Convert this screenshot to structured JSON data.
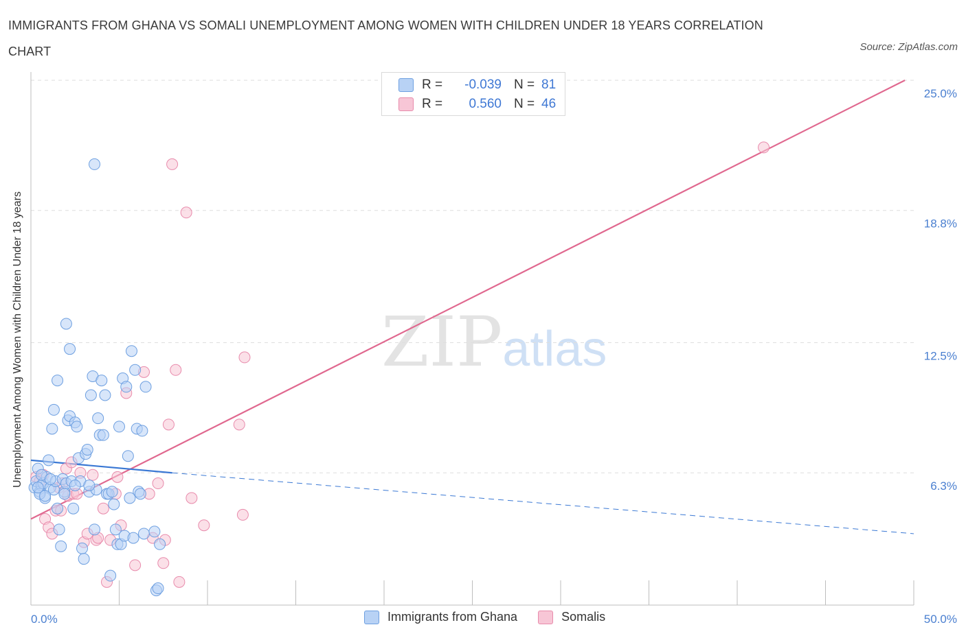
{
  "title": "IMMIGRANTS FROM GHANA VS SOMALI UNEMPLOYMENT AMONG WOMEN WITH CHILDREN UNDER 18 YEARS CORRELATION CHART",
  "source": "Source: ZipAtlas.com",
  "watermark": {
    "zip": "ZIP",
    "atlas": "atlas"
  },
  "legend": {
    "r_label": "R =",
    "n_label": "N =",
    "ghana": {
      "r": "-0.039",
      "n": "81"
    },
    "somali": {
      "r": "0.560",
      "n": "46"
    }
  },
  "colors": {
    "ghana_fill": "#b8d2f5",
    "ghana_stroke": "#6d9fe0",
    "ghana_line": "#3a78d4",
    "somali_fill": "#f7c6d6",
    "somali_stroke": "#e88aab",
    "somali_line": "#e0688f"
  },
  "chart_data": {
    "type": "scatter",
    "title": "IMMIGRANTS FROM GHANA VS SOMALI UNEMPLOYMENT AMONG WOMEN WITH CHILDREN UNDER 18 YEARS CORRELATION CHART",
    "xlabel": "",
    "ylabel": "Unemployment Among Women with Children Under 18 years",
    "xlim": [
      0,
      50
    ],
    "ylim": [
      0,
      25
    ],
    "x_tick_labels": [
      "0.0%",
      "50.0%"
    ],
    "y_ticks": [
      6.3,
      12.5,
      18.8,
      25.0
    ],
    "y_tick_labels": [
      "6.3%",
      "12.5%",
      "18.8%",
      "25.0%"
    ],
    "grid": true,
    "legend_position": "top-center",
    "series": [
      {
        "name": "Immigrants from Ghana",
        "r": -0.039,
        "n": 81,
        "trend": {
          "x0": 0,
          "y0": 6.9,
          "x1": 8,
          "y1": 6.3,
          "dashed_to_x": 50,
          "dashed_to_y": 3.4
        },
        "points": [
          [
            0.2,
            5.6
          ],
          [
            0.3,
            5.9
          ],
          [
            0.4,
            6.5
          ],
          [
            0.5,
            5.4
          ],
          [
            0.6,
            5.7
          ],
          [
            0.7,
            5.8
          ],
          [
            0.8,
            5.1
          ],
          [
            0.9,
            6.1
          ],
          [
            1.0,
            6.9
          ],
          [
            1.1,
            5.6
          ],
          [
            1.2,
            8.4
          ],
          [
            1.3,
            5.5
          ],
          [
            1.4,
            5.9
          ],
          [
            1.5,
            4.6
          ],
          [
            1.6,
            3.6
          ],
          [
            1.7,
            2.8
          ],
          [
            1.8,
            6.0
          ],
          [
            1.9,
            5.4
          ],
          [
            2.0,
            5.8
          ],
          [
            2.1,
            8.8
          ],
          [
            2.2,
            9.0
          ],
          [
            2.3,
            5.9
          ],
          [
            2.4,
            4.6
          ],
          [
            2.5,
            8.7
          ],
          [
            2.6,
            8.5
          ],
          [
            2.7,
            7.0
          ],
          [
            2.8,
            5.9
          ],
          [
            2.9,
            2.7
          ],
          [
            3.0,
            2.2
          ],
          [
            3.1,
            7.2
          ],
          [
            3.2,
            7.4
          ],
          [
            3.3,
            5.4
          ],
          [
            3.4,
            10.0
          ],
          [
            3.5,
            10.9
          ],
          [
            3.6,
            3.6
          ],
          [
            3.7,
            5.5
          ],
          [
            3.8,
            8.9
          ],
          [
            3.9,
            8.1
          ],
          [
            4.0,
            10.7
          ],
          [
            4.1,
            8.1
          ],
          [
            4.2,
            10.0
          ],
          [
            4.3,
            5.3
          ],
          [
            4.4,
            5.3
          ],
          [
            4.5,
            1.4
          ],
          [
            4.6,
            5.4
          ],
          [
            4.7,
            4.8
          ],
          [
            4.8,
            3.6
          ],
          [
            4.9,
            2.9
          ],
          [
            5.0,
            8.5
          ],
          [
            5.1,
            2.9
          ],
          [
            5.2,
            10.8
          ],
          [
            5.3,
            3.3
          ],
          [
            5.4,
            10.4
          ],
          [
            5.5,
            7.1
          ],
          [
            5.6,
            5.1
          ],
          [
            5.7,
            12.1
          ],
          [
            5.8,
            3.2
          ],
          [
            5.9,
            11.2
          ],
          [
            6.0,
            8.4
          ],
          [
            6.1,
            5.4
          ],
          [
            6.2,
            5.3
          ],
          [
            6.3,
            8.3
          ],
          [
            6.4,
            3.4
          ],
          [
            6.5,
            10.4
          ],
          [
            7.0,
            3.5
          ],
          [
            7.1,
            0.7
          ],
          [
            7.2,
            0.8
          ],
          [
            7.3,
            2.9
          ],
          [
            3.6,
            21.0
          ],
          [
            2.0,
            13.4
          ],
          [
            2.2,
            12.2
          ],
          [
            0.5,
            5.3
          ],
          [
            0.6,
            6.2
          ],
          [
            1.3,
            9.3
          ],
          [
            1.5,
            10.7
          ],
          [
            2.5,
            5.7
          ],
          [
            1.1,
            6.0
          ],
          [
            0.4,
            5.6
          ],
          [
            0.8,
            5.2
          ],
          [
            1.9,
            5.3
          ],
          [
            3.3,
            5.7
          ]
        ]
      },
      {
        "name": "Somalis",
        "r": 0.56,
        "n": 46,
        "trend": {
          "x0": 0,
          "y0": 4.1,
          "x1": 49.5,
          "y1": 25.0
        },
        "points": [
          [
            0.3,
            6.1
          ],
          [
            0.5,
            5.9
          ],
          [
            0.7,
            6.2
          ],
          [
            0.8,
            4.1
          ],
          [
            1.0,
            3.7
          ],
          [
            1.2,
            3.4
          ],
          [
            1.4,
            4.5
          ],
          [
            1.6,
            5.6
          ],
          [
            1.7,
            4.5
          ],
          [
            1.8,
            5.8
          ],
          [
            2.0,
            6.5
          ],
          [
            2.1,
            5.2
          ],
          [
            2.3,
            6.8
          ],
          [
            2.4,
            5.3
          ],
          [
            2.6,
            5.3
          ],
          [
            2.8,
            6.3
          ],
          [
            3.0,
            3.0
          ],
          [
            3.2,
            3.4
          ],
          [
            3.5,
            6.2
          ],
          [
            3.7,
            3.1
          ],
          [
            3.8,
            3.2
          ],
          [
            4.1,
            4.6
          ],
          [
            4.3,
            1.1
          ],
          [
            4.5,
            3.1
          ],
          [
            4.8,
            5.3
          ],
          [
            4.9,
            6.1
          ],
          [
            5.1,
            3.8
          ],
          [
            5.4,
            10.1
          ],
          [
            5.9,
            1.9
          ],
          [
            6.4,
            11.1
          ],
          [
            6.7,
            5.3
          ],
          [
            6.9,
            3.2
          ],
          [
            7.2,
            5.8
          ],
          [
            7.6,
            3.1
          ],
          [
            7.5,
            2.0
          ],
          [
            7.8,
            8.6
          ],
          [
            8.0,
            21.0
          ],
          [
            8.2,
            11.2
          ],
          [
            8.4,
            1.1
          ],
          [
            8.8,
            18.7
          ],
          [
            9.1,
            5.1
          ],
          [
            9.8,
            3.8
          ],
          [
            11.8,
            8.6
          ],
          [
            12.0,
            4.3
          ],
          [
            12.1,
            11.8
          ],
          [
            41.5,
            21.8
          ]
        ]
      }
    ]
  },
  "bottom_legend": [
    "Immigrants from Ghana",
    "Somalis"
  ]
}
